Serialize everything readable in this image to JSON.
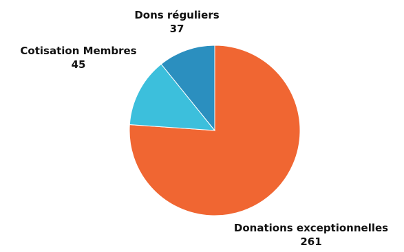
{
  "chart_data": {
    "type": "pie",
    "title": "",
    "slices": [
      {
        "label": "Donations exceptionnelles",
        "value": 261,
        "color": "#f06632"
      },
      {
        "label": "Cotisation Membres",
        "value": 45,
        "color": "#3cbfdc"
      },
      {
        "label": "Dons réguliers",
        "value": 37,
        "color": "#2b8fbf"
      }
    ],
    "start_angle_deg": 0,
    "direction": "clockwise",
    "legend": "none",
    "data_labels": "outside"
  }
}
